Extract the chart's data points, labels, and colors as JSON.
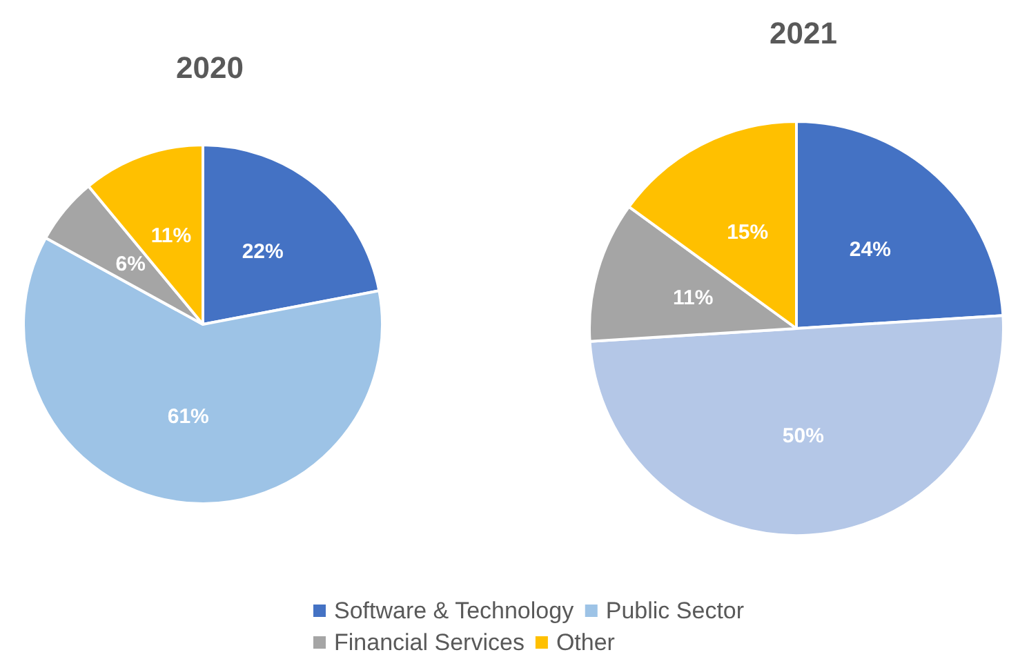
{
  "chart_data": {
    "type": "pie",
    "categories": [
      "Software & Technology",
      "Public Sector",
      "Financial Services",
      "Other"
    ],
    "legend": "bottom",
    "series": [
      {
        "name": "2020",
        "values": [
          22,
          61,
          6,
          11
        ],
        "colors": [
          "#4472c4",
          "#9dc3e6",
          "#a5a5a5",
          "#ffc000"
        ],
        "value_labels": [
          "22%",
          "61%",
          "6%",
          "11%"
        ]
      },
      {
        "name": "2021",
        "values": [
          24,
          50,
          11,
          15
        ],
        "colors": [
          "#4472c4",
          "#b4c7e7",
          "#a5a5a5",
          "#ffc000"
        ],
        "value_labels": [
          "24%",
          "50%",
          "11%",
          "15%"
        ]
      }
    ]
  }
}
